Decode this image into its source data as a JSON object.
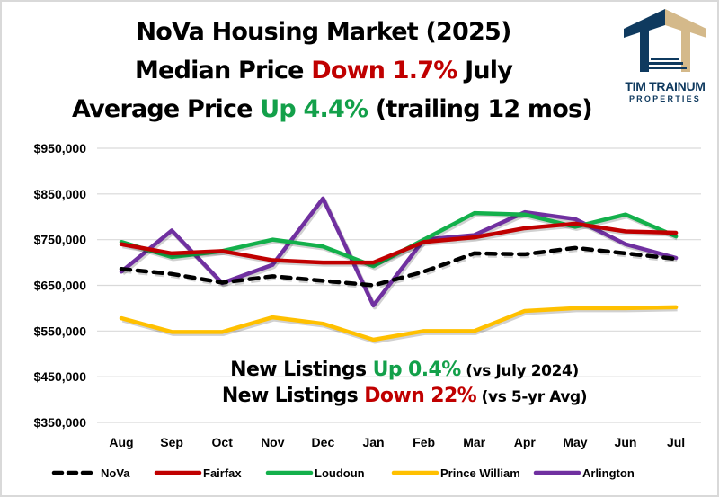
{
  "header": {
    "line1": "NoVa Housing Market (2025)",
    "line2_prefix": "Median Price ",
    "line2_highlight": "Down 1.7%",
    "line2_suffix": " July",
    "line3_prefix": "Average Price ",
    "line3_highlight": "Up 4.4%",
    "line3_suffix": " (trailing 12 mos)"
  },
  "logo": {
    "name_line1": "TIM TRAINUM",
    "name_line2": "PROPERTIES",
    "colors": {
      "navy": "#0f3a5f",
      "gold": "#d4b98a"
    }
  },
  "annotations": {
    "line1_prefix": "New Listings ",
    "line1_highlight": "Up 0.4%",
    "line1_suffix": " (vs July 2024)",
    "line2_prefix": "New Listings ",
    "line2_highlight": "Down 22%",
    "line2_suffix": " (vs 5-yr Avg)"
  },
  "colors": {
    "up": "#13a04a",
    "down": "#c00000"
  },
  "chart_data": {
    "type": "line",
    "title": "NoVa Housing Market (2025)",
    "xlabel": "",
    "ylabel": "",
    "categories": [
      "Aug",
      "Sep",
      "Oct",
      "Nov",
      "Dec",
      "Jan",
      "Feb",
      "Mar",
      "Apr",
      "May",
      "Jun",
      "Jul"
    ],
    "ylim": [
      350000,
      950000
    ],
    "yticks": [
      950000,
      850000,
      750000,
      650000,
      550000,
      450000,
      350000
    ],
    "ytick_labels": [
      "$950,000",
      "$850,000",
      "$750,000",
      "$650,000",
      "$550,000",
      "$450,000",
      "$350,000"
    ],
    "grid": true,
    "legend_position": "bottom",
    "series": [
      {
        "name": "NoVa",
        "color": "#000000",
        "dashed": true,
        "values": [
          686000,
          675000,
          656000,
          670000,
          660000,
          650000,
          680000,
          720000,
          718000,
          732000,
          720000,
          708000
        ]
      },
      {
        "name": "Fairfax",
        "color": "#c00000",
        "dashed": false,
        "values": [
          740000,
          720000,
          725000,
          705000,
          700000,
          700000,
          745000,
          755000,
          775000,
          785000,
          768000,
          765000
        ]
      },
      {
        "name": "Loudoun",
        "color": "#13b04b",
        "dashed": false,
        "values": [
          745000,
          712000,
          725000,
          750000,
          735000,
          692000,
          750000,
          808000,
          805000,
          778000,
          805000,
          757000
        ]
      },
      {
        "name": "Prince William",
        "color": "#ffc000",
        "dashed": false,
        "values": [
          578000,
          548000,
          548000,
          580000,
          566000,
          531000,
          550000,
          550000,
          594000,
          600000,
          600000,
          602000
        ]
      },
      {
        "name": "Arlington",
        "color": "#7030a0",
        "dashed": false,
        "values": [
          680000,
          770000,
          655000,
          695000,
          840000,
          606000,
          750000,
          760000,
          810000,
          795000,
          740000,
          710000
        ]
      }
    ]
  }
}
